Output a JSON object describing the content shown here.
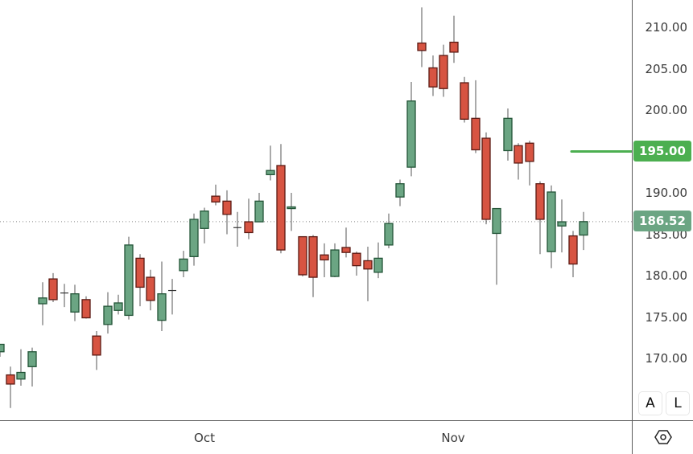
{
  "chart_data": {
    "type": "candlestick",
    "title": "",
    "xlabel": "",
    "ylabel": "",
    "ylim": [
      165.5,
      213.4
    ],
    "grid": false,
    "x_tick_labels": [
      {
        "label": "Oct",
        "x": 254
      },
      {
        "label": "Nov",
        "x": 563
      }
    ],
    "y_tick_labels": [
      "210.00",
      "205.00",
      "200.00",
      "195.00",
      "190.00",
      "185.00",
      "180.00",
      "175.00",
      "170.00"
    ],
    "y_ticks": [
      210,
      205,
      200,
      195,
      190,
      185,
      180,
      175,
      170
    ],
    "up_color": "#6ba583",
    "down_color": "#d75442",
    "up_border": "#225437",
    "down_border": "#5b1a13",
    "candles": [
      {
        "x": 0,
        "o": 170.8,
        "h": 171.7,
        "l": 170.2,
        "c": 171.7
      },
      {
        "x": 13,
        "o": 168.0,
        "h": 169.0,
        "l": 164.0,
        "c": 166.9
      },
      {
        "x": 26,
        "o": 167.5,
        "h": 171.1,
        "l": 166.7,
        "c": 168.3
      },
      {
        "x": 40,
        "o": 169.0,
        "h": 171.3,
        "l": 166.6,
        "c": 170.8
      },
      {
        "x": 53,
        "o": 176.6,
        "h": 179.2,
        "l": 174.0,
        "c": 177.3
      },
      {
        "x": 66,
        "o": 179.6,
        "h": 180.3,
        "l": 176.8,
        "c": 177.1
      },
      {
        "x": 80,
        "o": 177.9,
        "h": 179.0,
        "l": 176.2,
        "c": 177.9
      },
      {
        "x": 93,
        "o": 175.6,
        "h": 178.9,
        "l": 174.5,
        "c": 177.8
      },
      {
        "x": 107,
        "o": 177.1,
        "h": 177.5,
        "l": 174.8,
        "c": 174.9
      },
      {
        "x": 120,
        "o": 172.7,
        "h": 173.3,
        "l": 168.6,
        "c": 170.4
      },
      {
        "x": 134,
        "o": 174.1,
        "h": 178.0,
        "l": 173.0,
        "c": 176.3
      },
      {
        "x": 147,
        "o": 175.8,
        "h": 177.7,
        "l": 175.3,
        "c": 176.7
      },
      {
        "x": 160,
        "o": 175.2,
        "h": 184.7,
        "l": 174.7,
        "c": 183.7
      },
      {
        "x": 174,
        "o": 182.1,
        "h": 182.6,
        "l": 176.3,
        "c": 178.6
      },
      {
        "x": 187,
        "o": 179.8,
        "h": 180.7,
        "l": 175.8,
        "c": 177.0
      },
      {
        "x": 201,
        "o": 174.6,
        "h": 181.7,
        "l": 173.3,
        "c": 177.8
      },
      {
        "x": 214,
        "o": 178.2,
        "h": 179.6,
        "l": 175.3,
        "c": 178.2
      },
      {
        "x": 228,
        "o": 180.6,
        "h": 183.0,
        "l": 179.8,
        "c": 182.0
      },
      {
        "x": 241,
        "o": 182.3,
        "h": 187.5,
        "l": 181.2,
        "c": 186.8
      },
      {
        "x": 254,
        "o": 185.7,
        "h": 188.2,
        "l": 183.9,
        "c": 187.8
      },
      {
        "x": 268,
        "o": 189.6,
        "h": 191.0,
        "l": 188.5,
        "c": 188.9
      },
      {
        "x": 282,
        "o": 189.0,
        "h": 190.3,
        "l": 185.0,
        "c": 187.4
      },
      {
        "x": 295,
        "o": 185.8,
        "h": 187.7,
        "l": 183.5,
        "c": 185.8
      },
      {
        "x": 309,
        "o": 186.5,
        "h": 189.3,
        "l": 184.4,
        "c": 185.2
      },
      {
        "x": 322,
        "o": 186.5,
        "h": 190.0,
        "l": 186.5,
        "c": 189.0
      },
      {
        "x": 336,
        "o": 192.2,
        "h": 195.7,
        "l": 191.5,
        "c": 192.7
      },
      {
        "x": 349,
        "o": 193.3,
        "h": 195.9,
        "l": 182.7,
        "c": 183.1
      },
      {
        "x": 362,
        "o": 188.1,
        "h": 190.0,
        "l": 185.4,
        "c": 188.3
      },
      {
        "x": 376,
        "o": 184.7,
        "h": 184.7,
        "l": 179.9,
        "c": 180.1
      },
      {
        "x": 389,
        "o": 184.7,
        "h": 184.9,
        "l": 177.4,
        "c": 179.8
      },
      {
        "x": 403,
        "o": 182.5,
        "h": 183.9,
        "l": 179.8,
        "c": 181.9
      },
      {
        "x": 416,
        "o": 179.9,
        "h": 183.9,
        "l": 179.8,
        "c": 183.1
      },
      {
        "x": 430,
        "o": 183.4,
        "h": 185.8,
        "l": 182.2,
        "c": 182.8
      },
      {
        "x": 443,
        "o": 182.7,
        "h": 182.9,
        "l": 180.0,
        "c": 181.2
      },
      {
        "x": 457,
        "o": 181.8,
        "h": 183.5,
        "l": 176.9,
        "c": 180.8
      },
      {
        "x": 470,
        "o": 180.4,
        "h": 184.0,
        "l": 179.7,
        "c": 182.1
      },
      {
        "x": 483,
        "o": 183.7,
        "h": 187.5,
        "l": 183.3,
        "c": 186.3
      },
      {
        "x": 497,
        "o": 189.5,
        "h": 191.6,
        "l": 188.4,
        "c": 191.1
      },
      {
        "x": 511,
        "o": 193.1,
        "h": 203.4,
        "l": 192.0,
        "c": 201.1
      },
      {
        "x": 524,
        "o": 208.1,
        "h": 212.4,
        "l": 205.2,
        "c": 207.2
      },
      {
        "x": 538,
        "o": 205.1,
        "h": 206.6,
        "l": 201.7,
        "c": 202.8
      },
      {
        "x": 551,
        "o": 206.6,
        "h": 207.9,
        "l": 201.6,
        "c": 202.6
      },
      {
        "x": 564,
        "o": 208.2,
        "h": 211.4,
        "l": 205.7,
        "c": 207.0
      },
      {
        "x": 577,
        "o": 203.3,
        "h": 204.0,
        "l": 198.5,
        "c": 198.9
      },
      {
        "x": 591,
        "o": 199.0,
        "h": 203.6,
        "l": 194.8,
        "c": 195.2
      },
      {
        "x": 604,
        "o": 196.6,
        "h": 197.3,
        "l": 186.2,
        "c": 186.8
      },
      {
        "x": 617,
        "o": 185.1,
        "h": 187.8,
        "l": 178.9,
        "c": 188.1
      },
      {
        "x": 631,
        "o": 195.1,
        "h": 200.2,
        "l": 193.9,
        "c": 199.0
      },
      {
        "x": 644,
        "o": 195.7,
        "h": 196.0,
        "l": 191.6,
        "c": 193.6
      },
      {
        "x": 658,
        "o": 196.0,
        "h": 196.3,
        "l": 190.9,
        "c": 193.8
      },
      {
        "x": 671,
        "o": 191.1,
        "h": 191.4,
        "l": 182.6,
        "c": 186.8
      },
      {
        "x": 685,
        "o": 182.9,
        "h": 190.9,
        "l": 180.9,
        "c": 190.1
      },
      {
        "x": 698,
        "o": 186.0,
        "h": 189.2,
        "l": 182.8,
        "c": 186.5
      },
      {
        "x": 712,
        "o": 184.8,
        "h": 185.4,
        "l": 179.8,
        "c": 181.4
      },
      {
        "x": 725,
        "o": 184.9,
        "h": 187.7,
        "l": 183.1,
        "c": 186.52
      }
    ],
    "current_price": {
      "value": 186.52,
      "label": "186.52",
      "color": "#6ba583"
    },
    "alert_line": {
      "value": 195.0,
      "label": "195.00",
      "color": "#4caf50",
      "x_start": 710
    }
  },
  "price_axis": {
    "labels": [
      "210.00",
      "205.00",
      "200.00",
      "195.00",
      "190.00",
      "185.00",
      "180.00",
      "175.00",
      "170.00"
    ],
    "badge_alert": "195.00",
    "badge_current": "186.52"
  },
  "time_axis": {
    "labels": [
      "Oct",
      "Nov"
    ]
  },
  "buttons": {
    "auto_scale": "A",
    "log_scale": "L"
  },
  "icons": {
    "settings": "hexagon-settings-icon"
  }
}
